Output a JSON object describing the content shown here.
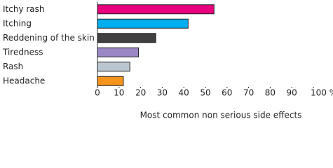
{
  "chart_data": {
    "type": "barh",
    "x_label": "Most common non serious side effects",
    "categories": [
      "Itchy rash",
      "Itching",
      "Reddening of the skin",
      "Tiredness",
      "Rash",
      "Headache"
    ],
    "values": [
      54,
      42,
      27,
      19,
      15,
      12
    ],
    "colors": [
      "#e6007e",
      "#00aeef",
      "#404040",
      "#9b87c4",
      "#bcc6cf",
      "#f7941d"
    ],
    "xlim": [
      0,
      100
    ],
    "xticks": [
      0,
      10,
      20,
      30,
      40,
      50,
      60,
      70,
      80,
      90,
      {
        "value": 100,
        "label": "100 %"
      }
    ]
  }
}
